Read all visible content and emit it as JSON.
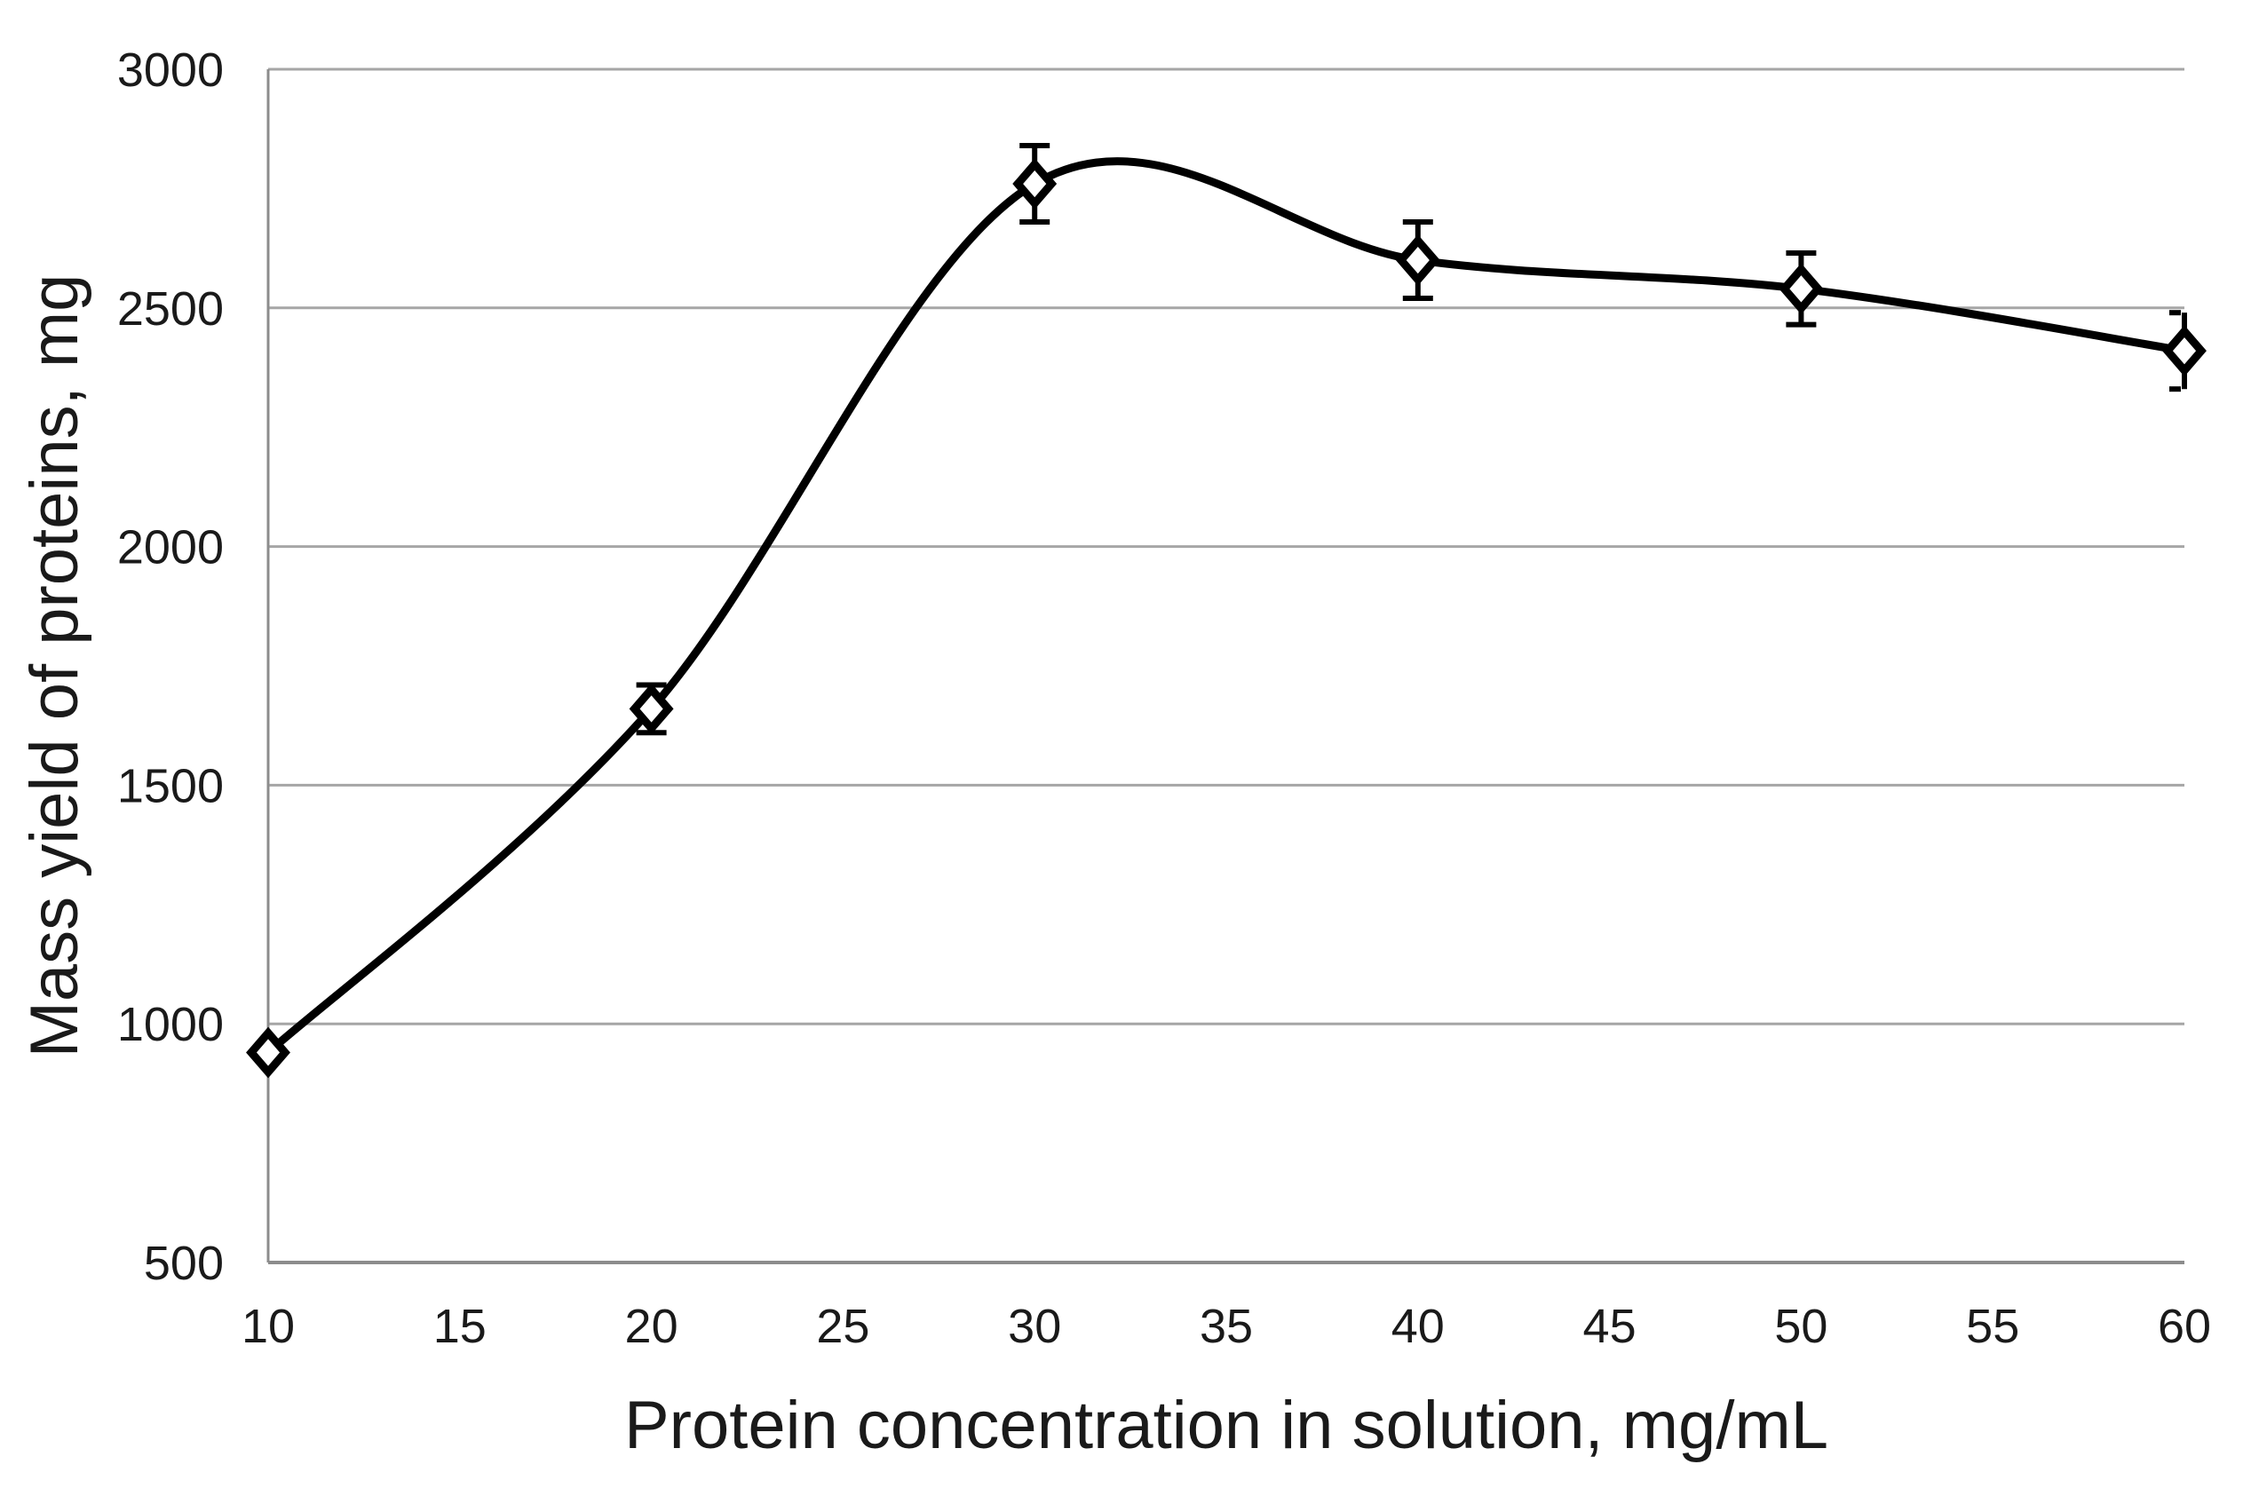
{
  "chart_data": {
    "type": "line",
    "title": "",
    "xlabel": "Protein concentration in solution, mg/mL",
    "ylabel": "Mass yield of proteins, mg",
    "x": [
      10,
      20,
      30,
      40,
      50,
      60
    ],
    "y": [
      940,
      1660,
      2760,
      2600,
      2540,
      2410
    ],
    "y_err": [
      0,
      50,
      80,
      80,
      75,
      80
    ],
    "x_ticks": [
      10,
      15,
      20,
      25,
      30,
      35,
      40,
      45,
      50,
      55,
      60
    ],
    "y_ticks": [
      500,
      1000,
      1500,
      2000,
      2500,
      3000
    ],
    "xlim": [
      10,
      60
    ],
    "ylim": [
      500,
      3000
    ],
    "grid": "horizontal",
    "legend": "none",
    "series_name": "Mass yield of proteins",
    "marker": "open-diamond",
    "smooth": true,
    "colors": {
      "line": "#000000",
      "marker_fill": "#ffffff",
      "gridline": "#a6a6a6",
      "axis": "#8c8c8c",
      "text": "#1a1a1a"
    }
  }
}
